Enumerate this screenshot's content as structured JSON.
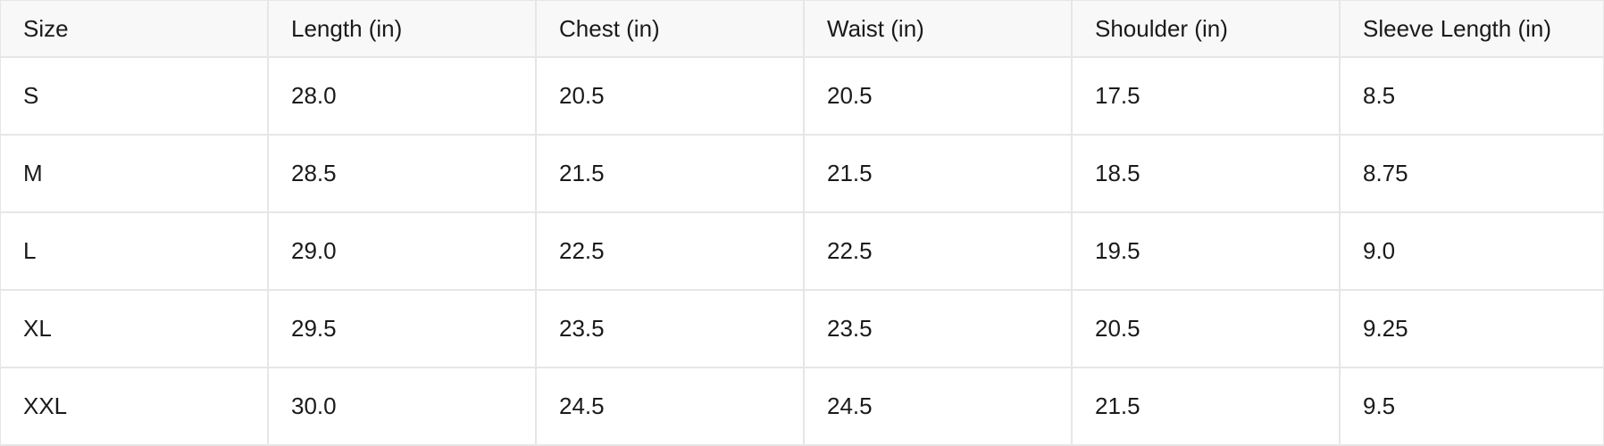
{
  "table": {
    "headers": [
      "Size",
      "Length (in)",
      "Chest (in)",
      "Waist (in)",
      "Shoulder (in)",
      "Sleeve Length (in)"
    ],
    "rows": [
      [
        "S",
        "28.0",
        "20.5",
        "20.5",
        "17.5",
        "8.5"
      ],
      [
        "M",
        "28.5",
        "21.5",
        "21.5",
        "18.5",
        "8.75"
      ],
      [
        "L",
        "29.0",
        "22.5",
        "22.5",
        "19.5",
        "9.0"
      ],
      [
        "XL",
        "29.5",
        "23.5",
        "23.5",
        "20.5",
        "9.25"
      ],
      [
        "XXL",
        "30.0",
        "24.5",
        "24.5",
        "21.5",
        "9.5"
      ]
    ]
  }
}
